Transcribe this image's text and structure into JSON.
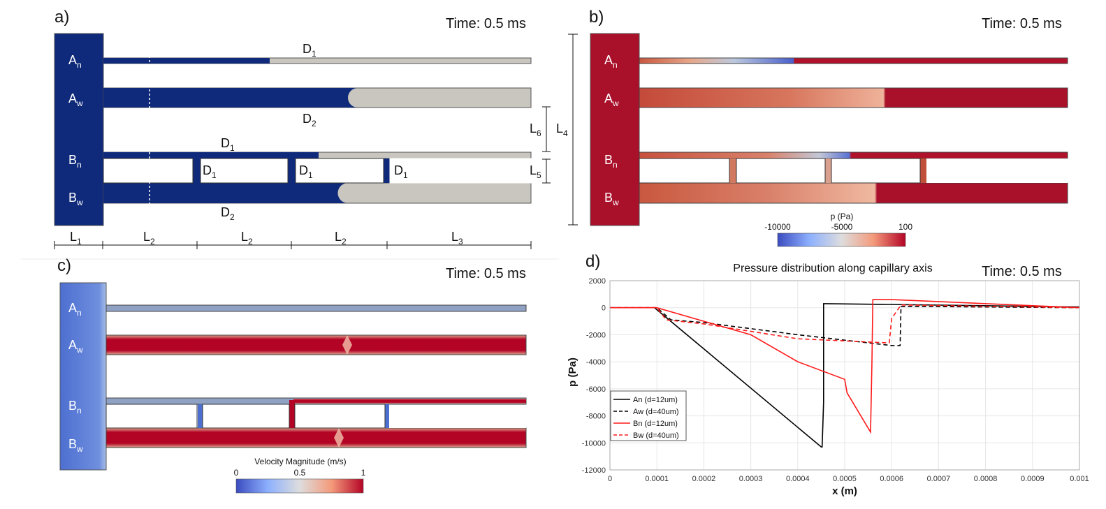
{
  "panels": {
    "a": {
      "label": "a)",
      "time": "Time: 0.5 ms",
      "branches": [
        {
          "name": "A",
          "sub": "n",
          "liquid_fill": 0.33
        },
        {
          "name": "A",
          "sub": "w",
          "liquid_fill": 0.57
        },
        {
          "name": "B",
          "sub": "n",
          "liquid_fill": 0.5
        },
        {
          "name": "B",
          "sub": "w",
          "liquid_fill": 0.55
        }
      ],
      "diameter_labels": {
        "d1_main": "D",
        "d1_sub": "1",
        "d2_main": "D",
        "d2_sub": "2"
      },
      "length_labels": {
        "l1": {
          "main": "L",
          "sub": "1"
        },
        "l2": {
          "main": "L",
          "sub": "2"
        },
        "l3": {
          "main": "L",
          "sub": "3"
        },
        "l4": {
          "main": "L",
          "sub": "4"
        },
        "l5": {
          "main": "L",
          "sub": "5"
        },
        "l6": {
          "main": "L",
          "sub": "6"
        }
      },
      "colors": {
        "liquid": "#0f2a7a",
        "air": "#c9c5bf"
      }
    },
    "b": {
      "label": "b)",
      "time": "Time: 0.5 ms",
      "colorbar": {
        "title": "p (Pa)",
        "ticks": [
          "-10000",
          "-5000",
          "100"
        ]
      },
      "colors": {
        "low": "#3b4cc0",
        "mid": "#dddddd",
        "high": "#b40426"
      }
    },
    "c": {
      "label": "c)",
      "time": "Time: 0.5 ms",
      "colorbar": {
        "title": "Velocity Magnitude (m/s)",
        "ticks": [
          "0",
          "0.5",
          "1"
        ]
      }
    },
    "d": {
      "label": "d)",
      "time": "Time: 0.5 ms"
    }
  },
  "chart_data": {
    "type": "line",
    "title": "Pressure distribution along capillary axis",
    "xlabel": "x (m)",
    "ylabel": "p (Pa)",
    "xlim": [
      0,
      0.001
    ],
    "ylim": [
      -12000,
      2000
    ],
    "xticks": [
      "0",
      "0.0001",
      "0.0002",
      "0.0003",
      "0.0004",
      "0.0005",
      "0.0006",
      "0.0007",
      "0.0008",
      "0.0009",
      "0.001"
    ],
    "yticks": [
      "2000",
      "0",
      "-2000",
      "-4000",
      "-6000",
      "-8000",
      "-10000",
      "-12000"
    ],
    "grid": true,
    "legend_position": "bottom-left",
    "series": [
      {
        "name": "An (d=12um)",
        "color": "#000000",
        "dash": false,
        "x": [
          0,
          9.5e-05,
          0.00045,
          0.000452,
          0.000455,
          0.000455,
          0.000458,
          0.00058,
          0.001
        ],
        "y": [
          0,
          0,
          -10300,
          -10300,
          -7000,
          300,
          300,
          250,
          50
        ]
      },
      {
        "name": "Aw (d=40um)",
        "color": "#000000",
        "dash": true,
        "x": [
          0,
          0.0001,
          0.00013,
          0.0002,
          0.0004,
          0.0006,
          0.000618,
          0.00062,
          0.00064,
          0.001
        ],
        "y": [
          0,
          0,
          -900,
          -1100,
          -2000,
          -2800,
          -2800,
          100,
          100,
          0
        ]
      },
      {
        "name": "Bn (d=12um)",
        "color": "#ff1a1a",
        "dash": false,
        "x": [
          0,
          0.0001,
          0.0002,
          0.0003,
          0.0004,
          0.0005,
          0.000505,
          0.000555,
          0.000558,
          0.00056,
          0.0006,
          0.001
        ],
        "y": [
          0,
          0,
          -1000,
          -2000,
          -4000,
          -5300,
          -6300,
          -9200,
          -4000,
          600,
          600,
          0
        ]
      },
      {
        "name": "Bw (d=40um)",
        "color": "#ff1a1a",
        "dash": true,
        "x": [
          0,
          0.0001,
          0.00012,
          0.0002,
          0.0004,
          0.00059,
          0.000595,
          0.0006,
          0.00062,
          0.001
        ],
        "y": [
          0,
          0,
          -900,
          -1200,
          -2300,
          -2600,
          -2600,
          -800,
          200,
          0
        ]
      }
    ]
  }
}
